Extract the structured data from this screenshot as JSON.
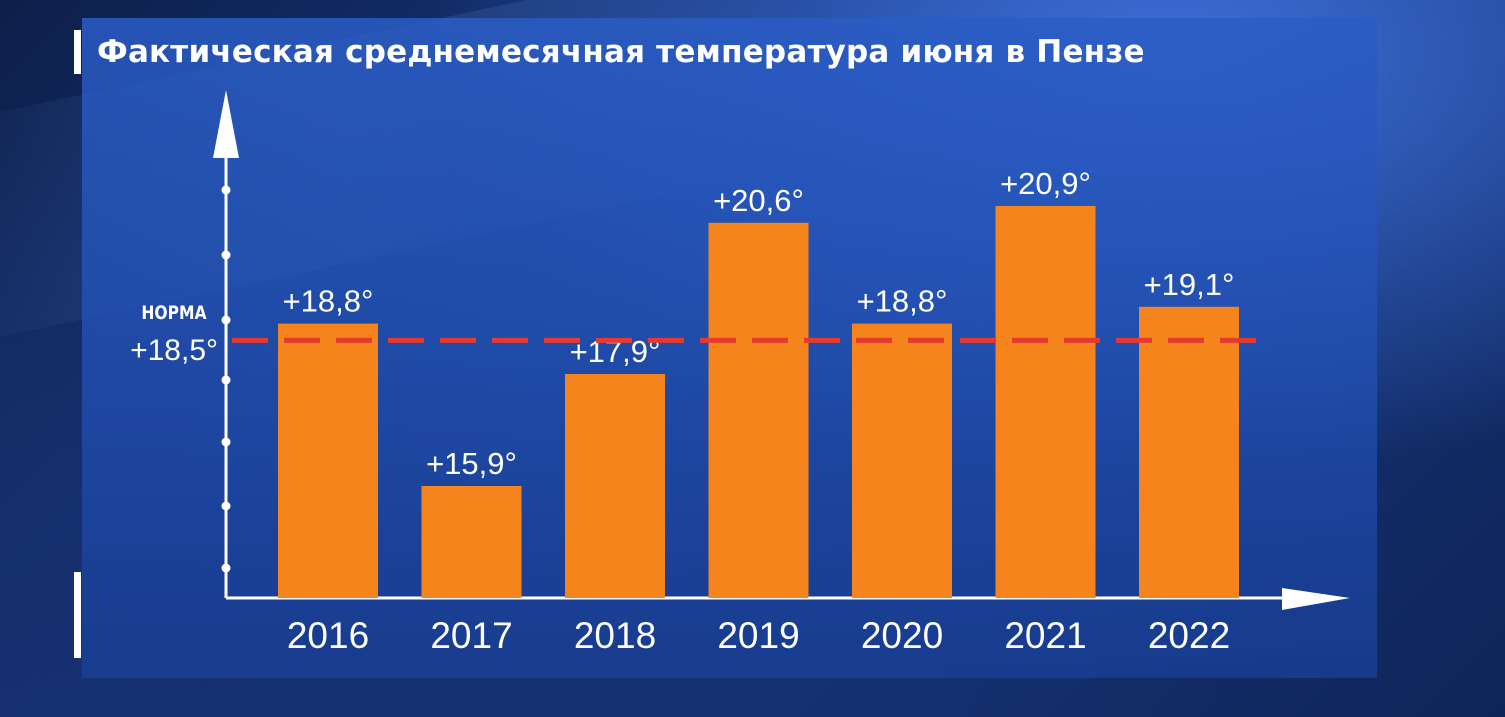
{
  "title": "Фактическая среднемесячная температура июня в Пензе",
  "norm": {
    "title": "НОРМА",
    "label": "+18,5°",
    "value": 18.5
  },
  "colors": {
    "bar": "#f5841d",
    "norm_line": "#e63a31",
    "axis": "#ffffff",
    "text": "#ffffff"
  },
  "chart_data": {
    "type": "bar",
    "title": "Фактическая среднемесячная температура июня в Пензе",
    "xlabel": "",
    "ylabel": "",
    "categories": [
      "2016",
      "2017",
      "2018",
      "2019",
      "2020",
      "2021",
      "2022"
    ],
    "values": [
      18.8,
      15.9,
      17.9,
      20.6,
      18.8,
      20.9,
      19.1
    ],
    "value_labels": [
      "+18,8°",
      "+15,9°",
      "+17,9°",
      "+20,6°",
      "+18,8°",
      "+20,9°",
      "+19,1°"
    ],
    "reference_line": {
      "label": "НОРМА +18,5°",
      "value": 18.5,
      "style": "dashed"
    },
    "ylim": [
      13.9,
      22.1
    ],
    "grid": false,
    "legend": "none"
  }
}
